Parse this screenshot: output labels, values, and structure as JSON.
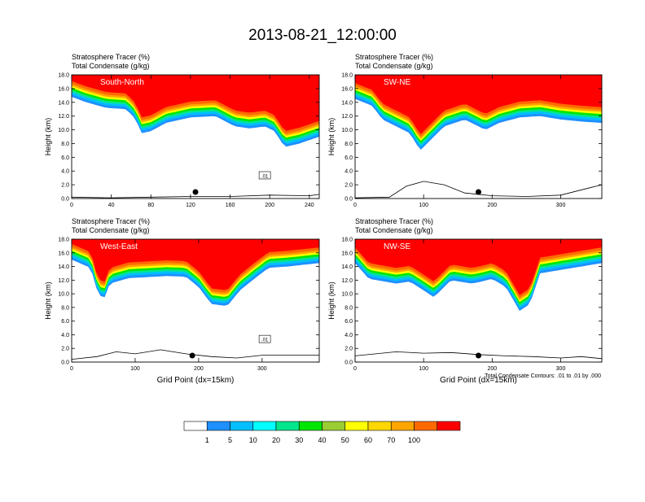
{
  "page_title": "2013-08-21_12:00:00",
  "panel_header": [
    "Stratosphere Tracer   (%)",
    "Total Condensate   (g/kg)"
  ],
  "contour_note": "Total Condensate Contours: .01 to .01 by .000",
  "colorbar": {
    "levels": [
      1,
      5,
      10,
      20,
      30,
      40,
      50,
      60,
      70,
      100
    ],
    "labels": [
      "1",
      "5",
      "10",
      "20",
      "30",
      "40",
      "50",
      "60",
      "70",
      "100"
    ],
    "colors": [
      "#ffffff",
      "#1e90ff",
      "#00bfff",
      "#00ffff",
      "#00e68c",
      "#00e600",
      "#9acd32",
      "#ffff00",
      "#ffd700",
      "#ffa500",
      "#ff6a00",
      "#ff0000"
    ]
  },
  "chart_data": [
    {
      "type": "heatmap",
      "panel_label": "South-North",
      "xlabel": "",
      "ylabel": "Height (km)",
      "xlim": [
        0,
        250
      ],
      "ylim": [
        0,
        18
      ],
      "x_ticks": [
        0,
        40,
        80,
        120,
        160,
        200,
        240
      ],
      "y_ticks": [
        0.0,
        2.0,
        4.0,
        6.0,
        8.0,
        10.0,
        12.0,
        14.0,
        16.0,
        18.0
      ],
      "tracer_base_km": [
        [
          0,
          14.8
        ],
        [
          15,
          14.0
        ],
        [
          35,
          13.2
        ],
        [
          55,
          13.0
        ],
        [
          65,
          11.5
        ],
        [
          70,
          9.5
        ],
        [
          80,
          9.8
        ],
        [
          95,
          11.0
        ],
        [
          120,
          11.8
        ],
        [
          145,
          12.0
        ],
        [
          165,
          10.5
        ],
        [
          180,
          10.2
        ],
        [
          195,
          10.5
        ],
        [
          205,
          9.8
        ],
        [
          215,
          7.5
        ],
        [
          230,
          8.0
        ],
        [
          250,
          9.0
        ]
      ],
      "condensate_label": ".01",
      "terrain_km": [
        [
          0,
          0.2
        ],
        [
          40,
          0.1
        ],
        [
          80,
          0.2
        ],
        [
          120,
          0.3
        ],
        [
          160,
          0.3
        ],
        [
          200,
          0.5
        ],
        [
          240,
          0.4
        ],
        [
          250,
          0.6
        ]
      ],
      "marker_x": 125
    },
    {
      "type": "heatmap",
      "panel_label": "SW-NE",
      "xlabel": "",
      "ylabel": "Height (km)",
      "xlim": [
        0,
        360
      ],
      "ylim": [
        0,
        18
      ],
      "x_ticks": [
        0,
        100,
        200,
        300
      ],
      "y_ticks": [
        0.0,
        2.0,
        4.0,
        6.0,
        8.0,
        10.0,
        12.0,
        14.0,
        16.0,
        18.0
      ],
      "tracer_base_km": [
        [
          0,
          14.5
        ],
        [
          25,
          13.5
        ],
        [
          40,
          11.5
        ],
        [
          60,
          10.5
        ],
        [
          80,
          9.5
        ],
        [
          95,
          7.0
        ],
        [
          110,
          8.5
        ],
        [
          130,
          10.5
        ],
        [
          160,
          11.5
        ],
        [
          190,
          10.0
        ],
        [
          210,
          11.0
        ],
        [
          240,
          11.8
        ],
        [
          270,
          12.0
        ],
        [
          300,
          11.5
        ],
        [
          330,
          11.2
        ],
        [
          360,
          11.0
        ]
      ],
      "condensate_label": "",
      "terrain_km": [
        [
          0,
          0.1
        ],
        [
          50,
          0.2
        ],
        [
          75,
          1.8
        ],
        [
          100,
          2.5
        ],
        [
          130,
          2.0
        ],
        [
          160,
          0.8
        ],
        [
          200,
          0.4
        ],
        [
          250,
          0.3
        ],
        [
          300,
          0.5
        ],
        [
          340,
          1.5
        ],
        [
          360,
          2.0
        ]
      ],
      "marker_x": 180
    },
    {
      "type": "heatmap",
      "panel_label": "West-East",
      "xlabel": "Grid Point (dx=15km)",
      "ylabel": "Height (km)",
      "xlim": [
        0,
        390
      ],
      "ylim": [
        0,
        18
      ],
      "x_ticks": [
        0,
        100,
        200,
        300
      ],
      "y_ticks": [
        0.0,
        2.0,
        4.0,
        6.0,
        8.0,
        10.0,
        12.0,
        14.0,
        16.0,
        18.0
      ],
      "tracer_base_km": [
        [
          0,
          15.0
        ],
        [
          30,
          13.8
        ],
        [
          40,
          10.5
        ],
        [
          50,
          9.0
        ],
        [
          60,
          11.5
        ],
        [
          90,
          12.3
        ],
        [
          150,
          12.6
        ],
        [
          180,
          12.5
        ],
        [
          200,
          11.0
        ],
        [
          220,
          8.5
        ],
        [
          245,
          8.2
        ],
        [
          265,
          10.5
        ],
        [
          285,
          12.0
        ],
        [
          310,
          13.8
        ],
        [
          340,
          14.0
        ],
        [
          390,
          14.5
        ]
      ],
      "condensate_label": ".01",
      "terrain_km": [
        [
          0,
          0.4
        ],
        [
          40,
          0.8
        ],
        [
          70,
          1.5
        ],
        [
          100,
          1.2
        ],
        [
          140,
          1.8
        ],
        [
          180,
          1.2
        ],
        [
          220,
          0.8
        ],
        [
          260,
          0.6
        ],
        [
          300,
          1.0
        ],
        [
          340,
          1.0
        ],
        [
          390,
          1.0
        ]
      ],
      "marker_x": 190
    },
    {
      "type": "heatmap",
      "panel_label": "NW-SE",
      "xlabel": "Grid Point (dx=15km)",
      "ylabel": "Height (km)",
      "xlim": [
        0,
        360
      ],
      "ylim": [
        0,
        18
      ],
      "x_ticks": [
        0,
        100,
        200,
        300
      ],
      "y_ticks": [
        0.0,
        2.0,
        4.0,
        6.0,
        8.0,
        10.0,
        12.0,
        14.0,
        16.0,
        18.0
      ],
      "tracer_base_km": [
        [
          0,
          14.5
        ],
        [
          20,
          12.2
        ],
        [
          60,
          11.5
        ],
        [
          80,
          11.8
        ],
        [
          100,
          10.5
        ],
        [
          115,
          9.5
        ],
        [
          140,
          12.0
        ],
        [
          170,
          11.5
        ],
        [
          185,
          11.8
        ],
        [
          200,
          12.2
        ],
        [
          220,
          11.0
        ],
        [
          240,
          7.5
        ],
        [
          255,
          8.5
        ],
        [
          270,
          13.0
        ],
        [
          300,
          13.5
        ],
        [
          330,
          14.0
        ],
        [
          360,
          14.5
        ]
      ],
      "condensate_label": "",
      "terrain_km": [
        [
          0,
          0.9
        ],
        [
          30,
          1.2
        ],
        [
          60,
          1.5
        ],
        [
          100,
          1.3
        ],
        [
          140,
          1.4
        ],
        [
          180,
          1.1
        ],
        [
          220,
          0.9
        ],
        [
          260,
          0.8
        ],
        [
          300,
          0.6
        ],
        [
          330,
          0.8
        ],
        [
          360,
          0.5
        ]
      ],
      "marker_x": 180
    }
  ]
}
